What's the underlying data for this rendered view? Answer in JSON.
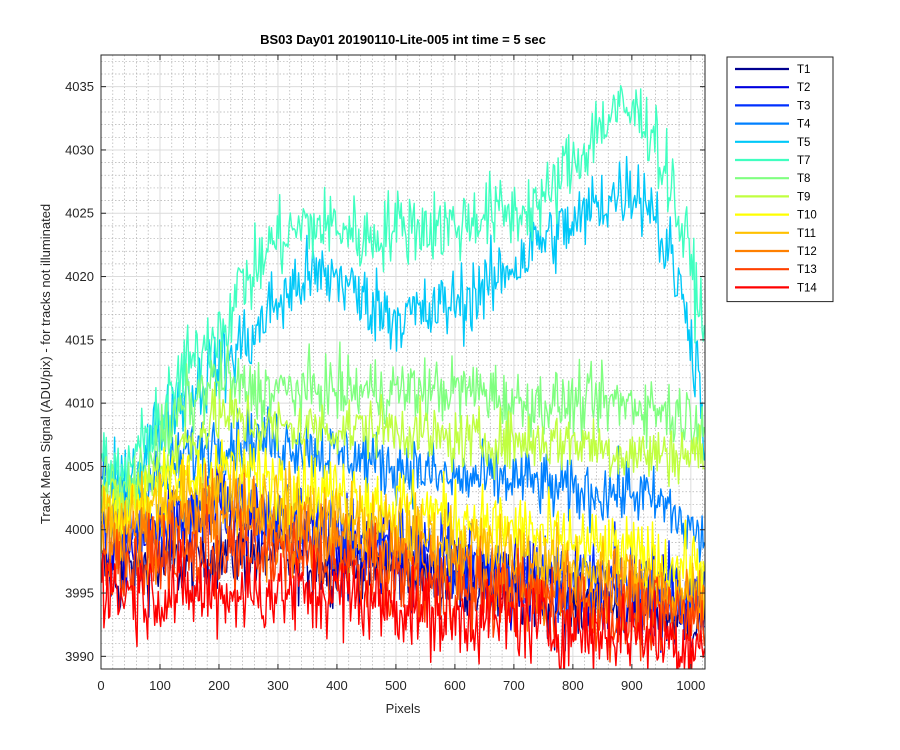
{
  "chart_data": {
    "type": "line",
    "title": "BS03 Day01 20190110-Lite-005 int time = 5 sec",
    "xlabel": "Pixels",
    "ylabel": "Track Mean Signal (ADU/pix) - for tracks not illuminated",
    "xlim": [
      0,
      1024
    ],
    "ylim": [
      3989,
      4037.5
    ],
    "x_ticks": [
      0,
      100,
      200,
      300,
      400,
      500,
      600,
      700,
      800,
      900,
      1000
    ],
    "y_ticks": [
      3990,
      3995,
      4000,
      4005,
      4010,
      4015,
      4020,
      4025,
      4030,
      4035
    ],
    "grid": true,
    "minor_grid": true,
    "legend_position": "outside-top-right",
    "series": [
      {
        "name": "T1",
        "color": "#00008f",
        "noise": 1.5,
        "points": [
          [
            0,
            3997
          ],
          [
            30,
            3996
          ],
          [
            60,
            3997
          ],
          [
            100,
            3997
          ],
          [
            200,
            3998
          ],
          [
            300,
            3998
          ],
          [
            400,
            3997
          ],
          [
            500,
            3997
          ],
          [
            600,
            3996
          ],
          [
            700,
            3995
          ],
          [
            800,
            3994
          ],
          [
            900,
            3994
          ],
          [
            1000,
            3993
          ],
          [
            1024,
            3993
          ]
        ]
      },
      {
        "name": "T2",
        "color": "#0000df",
        "noise": 1.7,
        "points": [
          [
            0,
            3999
          ],
          [
            30,
            3998
          ],
          [
            60,
            3999
          ],
          [
            100,
            4000
          ],
          [
            200,
            4001
          ],
          [
            300,
            4000
          ],
          [
            400,
            3999
          ],
          [
            500,
            3998
          ],
          [
            600,
            3997
          ],
          [
            700,
            3996
          ],
          [
            800,
            3995
          ],
          [
            900,
            3995
          ],
          [
            1000,
            3994
          ],
          [
            1024,
            3994
          ]
        ]
      },
      {
        "name": "T3",
        "color": "#0030ff",
        "noise": 1.6,
        "points": [
          [
            0,
            4001
          ],
          [
            30,
            4000
          ],
          [
            60,
            4000
          ],
          [
            100,
            4001
          ],
          [
            200,
            4002
          ],
          [
            300,
            4001
          ],
          [
            400,
            4000
          ],
          [
            500,
            3999
          ],
          [
            600,
            3998
          ],
          [
            700,
            3997
          ],
          [
            800,
            3996
          ],
          [
            900,
            3996
          ],
          [
            1000,
            3995
          ],
          [
            1024,
            3995
          ]
        ]
      },
      {
        "name": "T4",
        "color": "#0080ff",
        "noise": 1.3,
        "points": [
          [
            0,
            4004
          ],
          [
            30,
            4003
          ],
          [
            60,
            4003
          ],
          [
            100,
            4004
          ],
          [
            150,
            4006
          ],
          [
            200,
            4007
          ],
          [
            300,
            4007
          ],
          [
            400,
            4006
          ],
          [
            500,
            4005
          ],
          [
            600,
            4004
          ],
          [
            700,
            4004
          ],
          [
            800,
            4003
          ],
          [
            900,
            4003
          ],
          [
            950,
            4002
          ],
          [
            1000,
            4000
          ],
          [
            1024,
            3999
          ]
        ]
      },
      {
        "name": "T5",
        "color": "#00c8f8",
        "noise": 1.5,
        "points": [
          [
            0,
            4004
          ],
          [
            30,
            4003
          ],
          [
            60,
            4005
          ],
          [
            100,
            4008
          ],
          [
            150,
            4011
          ],
          [
            200,
            4013
          ],
          [
            250,
            4015
          ],
          [
            300,
            4018
          ],
          [
            350,
            4020
          ],
          [
            400,
            4020
          ],
          [
            450,
            4018
          ],
          [
            500,
            4017
          ],
          [
            550,
            4017
          ],
          [
            600,
            4018
          ],
          [
            650,
            4019
          ],
          [
            700,
            4021
          ],
          [
            750,
            4023
          ],
          [
            800,
            4024
          ],
          [
            850,
            4026
          ],
          [
            900,
            4027
          ],
          [
            930,
            4026
          ],
          [
            960,
            4022
          ],
          [
            990,
            4018
          ],
          [
            1010,
            4013
          ],
          [
            1024,
            4008
          ]
        ]
      },
      {
        "name": "T7",
        "color": "#40ffc0",
        "noise": 1.5,
        "points": [
          [
            0,
            4005
          ],
          [
            30,
            4004
          ],
          [
            60,
            4006
          ],
          [
            100,
            4009
          ],
          [
            150,
            4013
          ],
          [
            200,
            4016
          ],
          [
            250,
            4020
          ],
          [
            300,
            4023
          ],
          [
            350,
            4024
          ],
          [
            400,
            4024
          ],
          [
            450,
            4023
          ],
          [
            500,
            4024
          ],
          [
            550,
            4024
          ],
          [
            600,
            4024
          ],
          [
            650,
            4025
          ],
          [
            700,
            4025
          ],
          [
            750,
            4026
          ],
          [
            800,
            4029
          ],
          [
            850,
            4032
          ],
          [
            870,
            4033
          ],
          [
            900,
            4033
          ],
          [
            930,
            4032
          ],
          [
            960,
            4028
          ],
          [
            990,
            4023
          ],
          [
            1010,
            4019
          ],
          [
            1024,
            4015
          ]
        ]
      },
      {
        "name": "T8",
        "color": "#80ff80",
        "noise": 1.3,
        "points": [
          [
            0,
            4004
          ],
          [
            30,
            4003
          ],
          [
            60,
            4004
          ],
          [
            100,
            4007
          ],
          [
            150,
            4010
          ],
          [
            200,
            4012
          ],
          [
            250,
            4011
          ],
          [
            300,
            4011
          ],
          [
            400,
            4011
          ],
          [
            500,
            4011
          ],
          [
            600,
            4011
          ],
          [
            650,
            4011
          ],
          [
            700,
            4010
          ],
          [
            800,
            4010
          ],
          [
            900,
            4010
          ],
          [
            1000,
            4009
          ],
          [
            1024,
            4009
          ]
        ]
      },
      {
        "name": "T9",
        "color": "#c0ff40",
        "noise": 1.2,
        "points": [
          [
            0,
            4003
          ],
          [
            30,
            4002
          ],
          [
            60,
            4003
          ],
          [
            100,
            4005
          ],
          [
            150,
            4007
          ],
          [
            200,
            4009
          ],
          [
            300,
            4008
          ],
          [
            400,
            4008
          ],
          [
            500,
            4008
          ],
          [
            600,
            4007
          ],
          [
            700,
            4007
          ],
          [
            800,
            4007
          ],
          [
            900,
            4006
          ],
          [
            1000,
            4006
          ],
          [
            1024,
            4006
          ]
        ]
      },
      {
        "name": "T10",
        "color": "#ffff00",
        "noise": 1.5,
        "points": [
          [
            0,
            4002
          ],
          [
            30,
            4001
          ],
          [
            60,
            4002
          ],
          [
            100,
            4003
          ],
          [
            150,
            4004
          ],
          [
            200,
            4005
          ],
          [
            300,
            4004
          ],
          [
            400,
            4003
          ],
          [
            500,
            4002
          ],
          [
            600,
            4001
          ],
          [
            700,
            4000
          ],
          [
            800,
            3999
          ],
          [
            900,
            3998
          ],
          [
            1000,
            3997
          ],
          [
            1024,
            3997
          ]
        ]
      },
      {
        "name": "T11",
        "color": "#ffc000",
        "noise": 1.5,
        "points": [
          [
            0,
            4001
          ],
          [
            30,
            4000
          ],
          [
            60,
            4001
          ],
          [
            100,
            4002
          ],
          [
            200,
            4003
          ],
          [
            300,
            4002
          ],
          [
            400,
            4001
          ],
          [
            500,
            4000
          ],
          [
            600,
            3999
          ],
          [
            700,
            3998
          ],
          [
            800,
            3997
          ],
          [
            900,
            3996
          ],
          [
            1000,
            3995
          ],
          [
            1024,
            3995
          ]
        ]
      },
      {
        "name": "T12",
        "color": "#ff8000",
        "noise": 1.6,
        "points": [
          [
            0,
            4000
          ],
          [
            30,
            3999
          ],
          [
            60,
            3999
          ],
          [
            100,
            4000
          ],
          [
            200,
            4001
          ],
          [
            300,
            4000
          ],
          [
            400,
            3999
          ],
          [
            500,
            3998
          ],
          [
            600,
            3997
          ],
          [
            700,
            3996
          ],
          [
            800,
            3995
          ],
          [
            900,
            3995
          ],
          [
            1000,
            3994
          ],
          [
            1024,
            3994
          ]
        ]
      },
      {
        "name": "T13",
        "color": "#ff4000",
        "noise": 1.6,
        "points": [
          [
            0,
            3998
          ],
          [
            30,
            3997
          ],
          [
            60,
            3997
          ],
          [
            100,
            3998
          ],
          [
            200,
            3998
          ],
          [
            300,
            3998
          ],
          [
            400,
            3997
          ],
          [
            500,
            3996
          ],
          [
            600,
            3995
          ],
          [
            700,
            3995
          ],
          [
            800,
            3994
          ],
          [
            900,
            3993
          ],
          [
            1000,
            3993
          ],
          [
            1024,
            3993
          ]
        ]
      },
      {
        "name": "T14",
        "color": "#ff0000",
        "noise": 1.7,
        "points": [
          [
            0,
            3996
          ],
          [
            30,
            3995
          ],
          [
            60,
            3995
          ],
          [
            100,
            3995
          ],
          [
            200,
            3995
          ],
          [
            300,
            3995
          ],
          [
            400,
            3995
          ],
          [
            500,
            3994
          ],
          [
            600,
            3993
          ],
          [
            700,
            3993
          ],
          [
            800,
            3992
          ],
          [
            900,
            3992
          ],
          [
            1000,
            3991
          ],
          [
            1024,
            3991
          ]
        ]
      }
    ]
  }
}
